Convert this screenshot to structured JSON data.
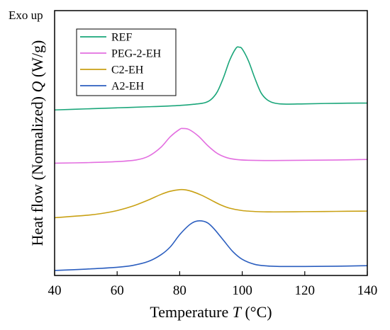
{
  "chart_data": {
    "type": "line",
    "annotation": "Exo up",
    "xlabel": "Temperature",
    "xlabel_symbol": "T",
    "xlabel_unit": "(°C)",
    "ylabel": "Heat flow (Normalized)",
    "ylabel_symbol": "Q",
    "ylabel_unit": "(W/g)",
    "xlim": [
      40,
      140
    ],
    "ylim": [
      0,
      1
    ],
    "xticks": [
      40,
      60,
      80,
      100,
      120,
      140
    ],
    "xtick_labels": [
      "40",
      "60",
      "80",
      "100",
      "120",
      "140"
    ],
    "grid": false,
    "legend_position": "top-left",
    "series": [
      {
        "name": "REF",
        "color": "#1aa67a",
        "x": [
          40,
          50,
          60,
          70,
          80,
          85,
          88,
          90,
          92,
          94,
          96,
          98,
          99,
          100,
          102,
          104,
          106,
          108,
          110,
          112,
          115,
          120,
          130,
          140
        ],
        "y": [
          0.625,
          0.629,
          0.633,
          0.637,
          0.642,
          0.647,
          0.652,
          0.664,
          0.693,
          0.747,
          0.813,
          0.858,
          0.862,
          0.855,
          0.81,
          0.746,
          0.69,
          0.663,
          0.652,
          0.648,
          0.647,
          0.648,
          0.65,
          0.651
        ]
      },
      {
        "name": "PEG-2-EH",
        "color": "#e36fe0",
        "x": [
          40,
          50,
          60,
          66,
          70,
          74,
          77,
          80,
          81,
          83,
          86,
          89,
          92,
          95,
          98,
          102,
          110,
          120,
          130,
          140
        ],
        "y": [
          0.424,
          0.426,
          0.43,
          0.436,
          0.45,
          0.484,
          0.524,
          0.552,
          0.555,
          0.551,
          0.526,
          0.49,
          0.461,
          0.445,
          0.438,
          0.435,
          0.434,
          0.435,
          0.436,
          0.438
        ]
      },
      {
        "name": "C2-EH",
        "color": "#c9a114",
        "x": [
          40,
          50,
          55,
          60,
          65,
          70,
          74,
          77,
          80,
          82,
          84,
          87,
          90,
          93,
          96,
          100,
          105,
          110,
          120,
          130,
          140
        ],
        "y": [
          0.218,
          0.227,
          0.234,
          0.245,
          0.262,
          0.285,
          0.306,
          0.318,
          0.324,
          0.323,
          0.317,
          0.303,
          0.285,
          0.267,
          0.254,
          0.245,
          0.241,
          0.24,
          0.241,
          0.242,
          0.243
        ]
      },
      {
        "name": "A2-EH",
        "color": "#2b5ebf",
        "x": [
          40,
          50,
          60,
          65,
          70,
          74,
          77,
          80,
          83,
          85,
          87,
          89,
          91,
          94,
          97,
          100,
          104,
          108,
          112,
          120,
          130,
          140
        ],
        "y": [
          0.019,
          0.024,
          0.031,
          0.038,
          0.053,
          0.078,
          0.108,
          0.154,
          0.19,
          0.204,
          0.206,
          0.198,
          0.176,
          0.133,
          0.09,
          0.061,
          0.042,
          0.036,
          0.034,
          0.034,
          0.035,
          0.037
        ]
      }
    ]
  }
}
